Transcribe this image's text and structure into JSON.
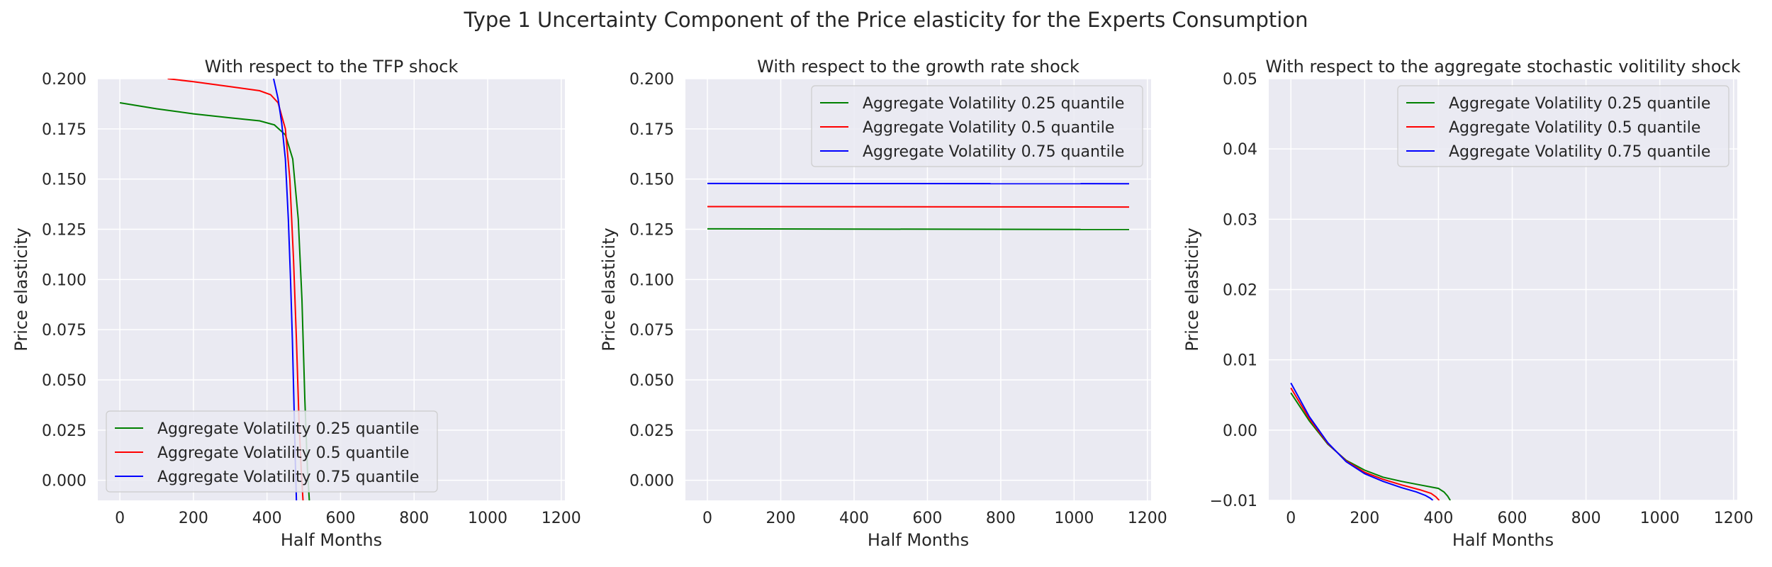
{
  "figure_title": "Type 1 Uncertainty Component of the Price elasticity for the Experts Consumption",
  "colors": {
    "axes_bg": "#eaeaf2",
    "grid": "#ffffff",
    "q25": "#008000",
    "q50": "#ff0000",
    "q75": "#0000ff"
  },
  "chart_data": [
    {
      "type": "line",
      "title": "With respect to the TFP shock",
      "xlabel": "Half Months",
      "ylabel": "Price elasticity",
      "xlim": [
        -60,
        1210
      ],
      "ylim": [
        -0.01,
        0.2
      ],
      "xticks": [
        0,
        200,
        400,
        600,
        800,
        1000,
        1200
      ],
      "xtick_labels": [
        "0",
        "200",
        "400",
        "600",
        "800",
        "1000",
        "1200"
      ],
      "yticks": [
        0.0,
        0.025,
        0.05,
        0.075,
        0.1,
        0.125,
        0.15,
        0.175,
        0.2
      ],
      "ytick_labels": [
        "0.000",
        "0.025",
        "0.050",
        "0.075",
        "0.100",
        "0.125",
        "0.150",
        "0.175",
        "0.200"
      ],
      "legend_position": "lower-left",
      "series": [
        {
          "name": "Aggregate Volatility 0.25 quantile",
          "color": "#008000",
          "x": [
            0,
            100,
            200,
            300,
            380,
            420,
            450,
            470,
            485,
            495,
            503,
            510,
            515
          ],
          "y": [
            0.188,
            0.185,
            0.1825,
            0.1805,
            0.179,
            0.177,
            0.172,
            0.16,
            0.13,
            0.09,
            0.04,
            0.005,
            -0.01
          ]
        },
        {
          "name": "Aggregate Volatility 0.5 quantile",
          "color": "#ff0000",
          "x": [
            130,
            200,
            300,
            380,
            410,
            430,
            450,
            462,
            472,
            480,
            487,
            493,
            498
          ],
          "y": [
            0.2,
            0.1985,
            0.196,
            0.194,
            0.192,
            0.188,
            0.175,
            0.15,
            0.11,
            0.07,
            0.03,
            0.005,
            -0.01
          ]
        },
        {
          "name": "Aggregate Volatility 0.75 quantile",
          "color": "#0000ff",
          "x": [
            418,
            430,
            440,
            450,
            458,
            464,
            469,
            473,
            477,
            480
          ],
          "y": [
            0.2,
            0.19,
            0.178,
            0.16,
            0.13,
            0.1,
            0.07,
            0.04,
            0.01,
            -0.01
          ]
        }
      ]
    },
    {
      "type": "line",
      "title": "With respect to the growth rate shock",
      "xlabel": "Half Months",
      "ylabel": "Price elasticity",
      "xlim": [
        -60,
        1210
      ],
      "ylim": [
        -0.01,
        0.2
      ],
      "xticks": [
        0,
        200,
        400,
        600,
        800,
        1000,
        1200
      ],
      "xtick_labels": [
        "0",
        "200",
        "400",
        "600",
        "800",
        "1000",
        "1200"
      ],
      "yticks": [
        0.0,
        0.025,
        0.05,
        0.075,
        0.1,
        0.125,
        0.15,
        0.175,
        0.2
      ],
      "ytick_labels": [
        "0.000",
        "0.025",
        "0.050",
        "0.075",
        "0.100",
        "0.125",
        "0.150",
        "0.175",
        "0.200"
      ],
      "legend_position": "upper-right",
      "series": [
        {
          "name": "Aggregate Volatility 0.25 quantile",
          "color": "#008000",
          "x": [
            0,
            1150
          ],
          "y": [
            0.1252,
            0.1249
          ]
        },
        {
          "name": "Aggregate Volatility 0.5 quantile",
          "color": "#ff0000",
          "x": [
            0,
            1150
          ],
          "y": [
            0.1363,
            0.1361
          ]
        },
        {
          "name": "Aggregate Volatility 0.75 quantile",
          "color": "#0000ff",
          "x": [
            0,
            1150
          ],
          "y": [
            0.1478,
            0.1477
          ]
        }
      ]
    },
    {
      "type": "line",
      "title": "With respect to the aggregate stochastic volitility shock",
      "xlabel": "Half Months",
      "ylabel": "Price elasticity",
      "xlim": [
        -60,
        1210
      ],
      "ylim": [
        -0.01,
        0.05
      ],
      "xticks": [
        0,
        200,
        400,
        600,
        800,
        1000,
        1200
      ],
      "xtick_labels": [
        "0",
        "200",
        "400",
        "600",
        "800",
        "1000",
        "1200"
      ],
      "yticks": [
        -0.01,
        0.0,
        0.01,
        0.02,
        0.03,
        0.04,
        0.05
      ],
      "ytick_labels": [
        "−0.01",
        "0.00",
        "0.01",
        "0.02",
        "0.03",
        "0.04",
        "0.05"
      ],
      "legend_position": "upper-right",
      "series": [
        {
          "name": "Aggregate Volatility 0.25 quantile",
          "color": "#008000",
          "x": [
            0,
            50,
            100,
            150,
            200,
            250,
            300,
            350,
            400,
            415,
            425,
            432
          ],
          "y": [
            0.0053,
            0.0013,
            -0.002,
            -0.0043,
            -0.0057,
            -0.0067,
            -0.0073,
            -0.0078,
            -0.0083,
            -0.0088,
            -0.0094,
            -0.01
          ]
        },
        {
          "name": "Aggregate Volatility 0.5 quantile",
          "color": "#ff0000",
          "x": [
            0,
            50,
            100,
            150,
            200,
            250,
            300,
            350,
            380,
            393,
            402
          ],
          "y": [
            0.006,
            0.0016,
            -0.0019,
            -0.0044,
            -0.006,
            -0.007,
            -0.0078,
            -0.0085,
            -0.009,
            -0.0095,
            -0.01
          ]
        },
        {
          "name": "Aggregate Volatility 0.75 quantile",
          "color": "#0000ff",
          "x": [
            0,
            50,
            100,
            150,
            200,
            250,
            300,
            340,
            365,
            378,
            385
          ],
          "y": [
            0.0067,
            0.0019,
            -0.0018,
            -0.0045,
            -0.0062,
            -0.0073,
            -0.0082,
            -0.0088,
            -0.0093,
            -0.0097,
            -0.01
          ]
        }
      ]
    }
  ]
}
